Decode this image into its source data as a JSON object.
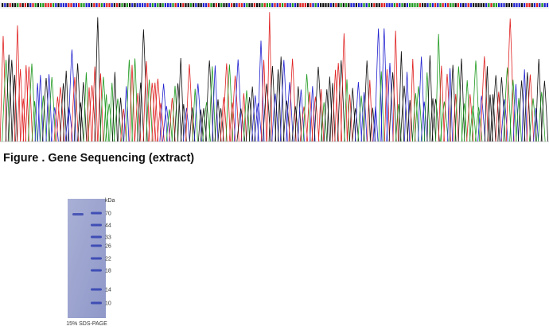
{
  "figure_caption": "Figure . Gene Sequencing (extract)",
  "gel": {
    "unit": "kDa",
    "markers": [
      "70",
      "44",
      "33",
      "26",
      "22",
      "18",
      "14",
      "10"
    ],
    "caption": "15% SDS-PAGE"
  }
}
